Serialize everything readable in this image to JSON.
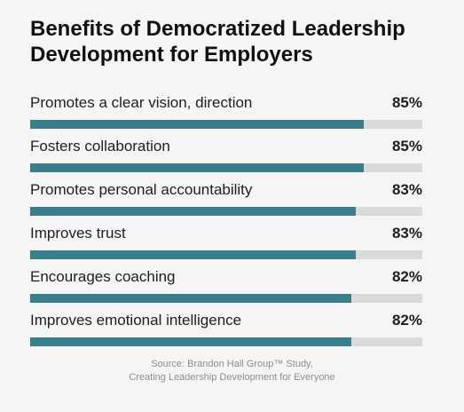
{
  "header": {
    "title_line1": "Benefits of Democratized Leadership",
    "title_line2": "Development for Employers"
  },
  "source": {
    "line1": "Source: Brandon Hall Group™ Study,",
    "line2": "Creating Leadership Development for Everyone"
  },
  "colors": {
    "bar": "#3a7d8c",
    "track": "#d8dadb",
    "background": "#f4f5f4"
  },
  "chart_data": {
    "type": "bar",
    "orientation": "horizontal",
    "title": "Benefits of Democratized Leadership Development for Employers",
    "categories": [
      "Promotes a clear vision, direction",
      "Fosters collaboration",
      "Promotes personal accountability",
      "Improves trust",
      "Encourages coaching",
      "Improves emotional intelligence"
    ],
    "values": [
      85,
      85,
      83,
      83,
      82,
      82
    ],
    "value_labels": [
      "85%",
      "85%",
      "83%",
      "83%",
      "82%",
      "82%"
    ],
    "xlim": [
      0,
      100
    ],
    "unit": "%",
    "grid": false,
    "legend": "none"
  }
}
